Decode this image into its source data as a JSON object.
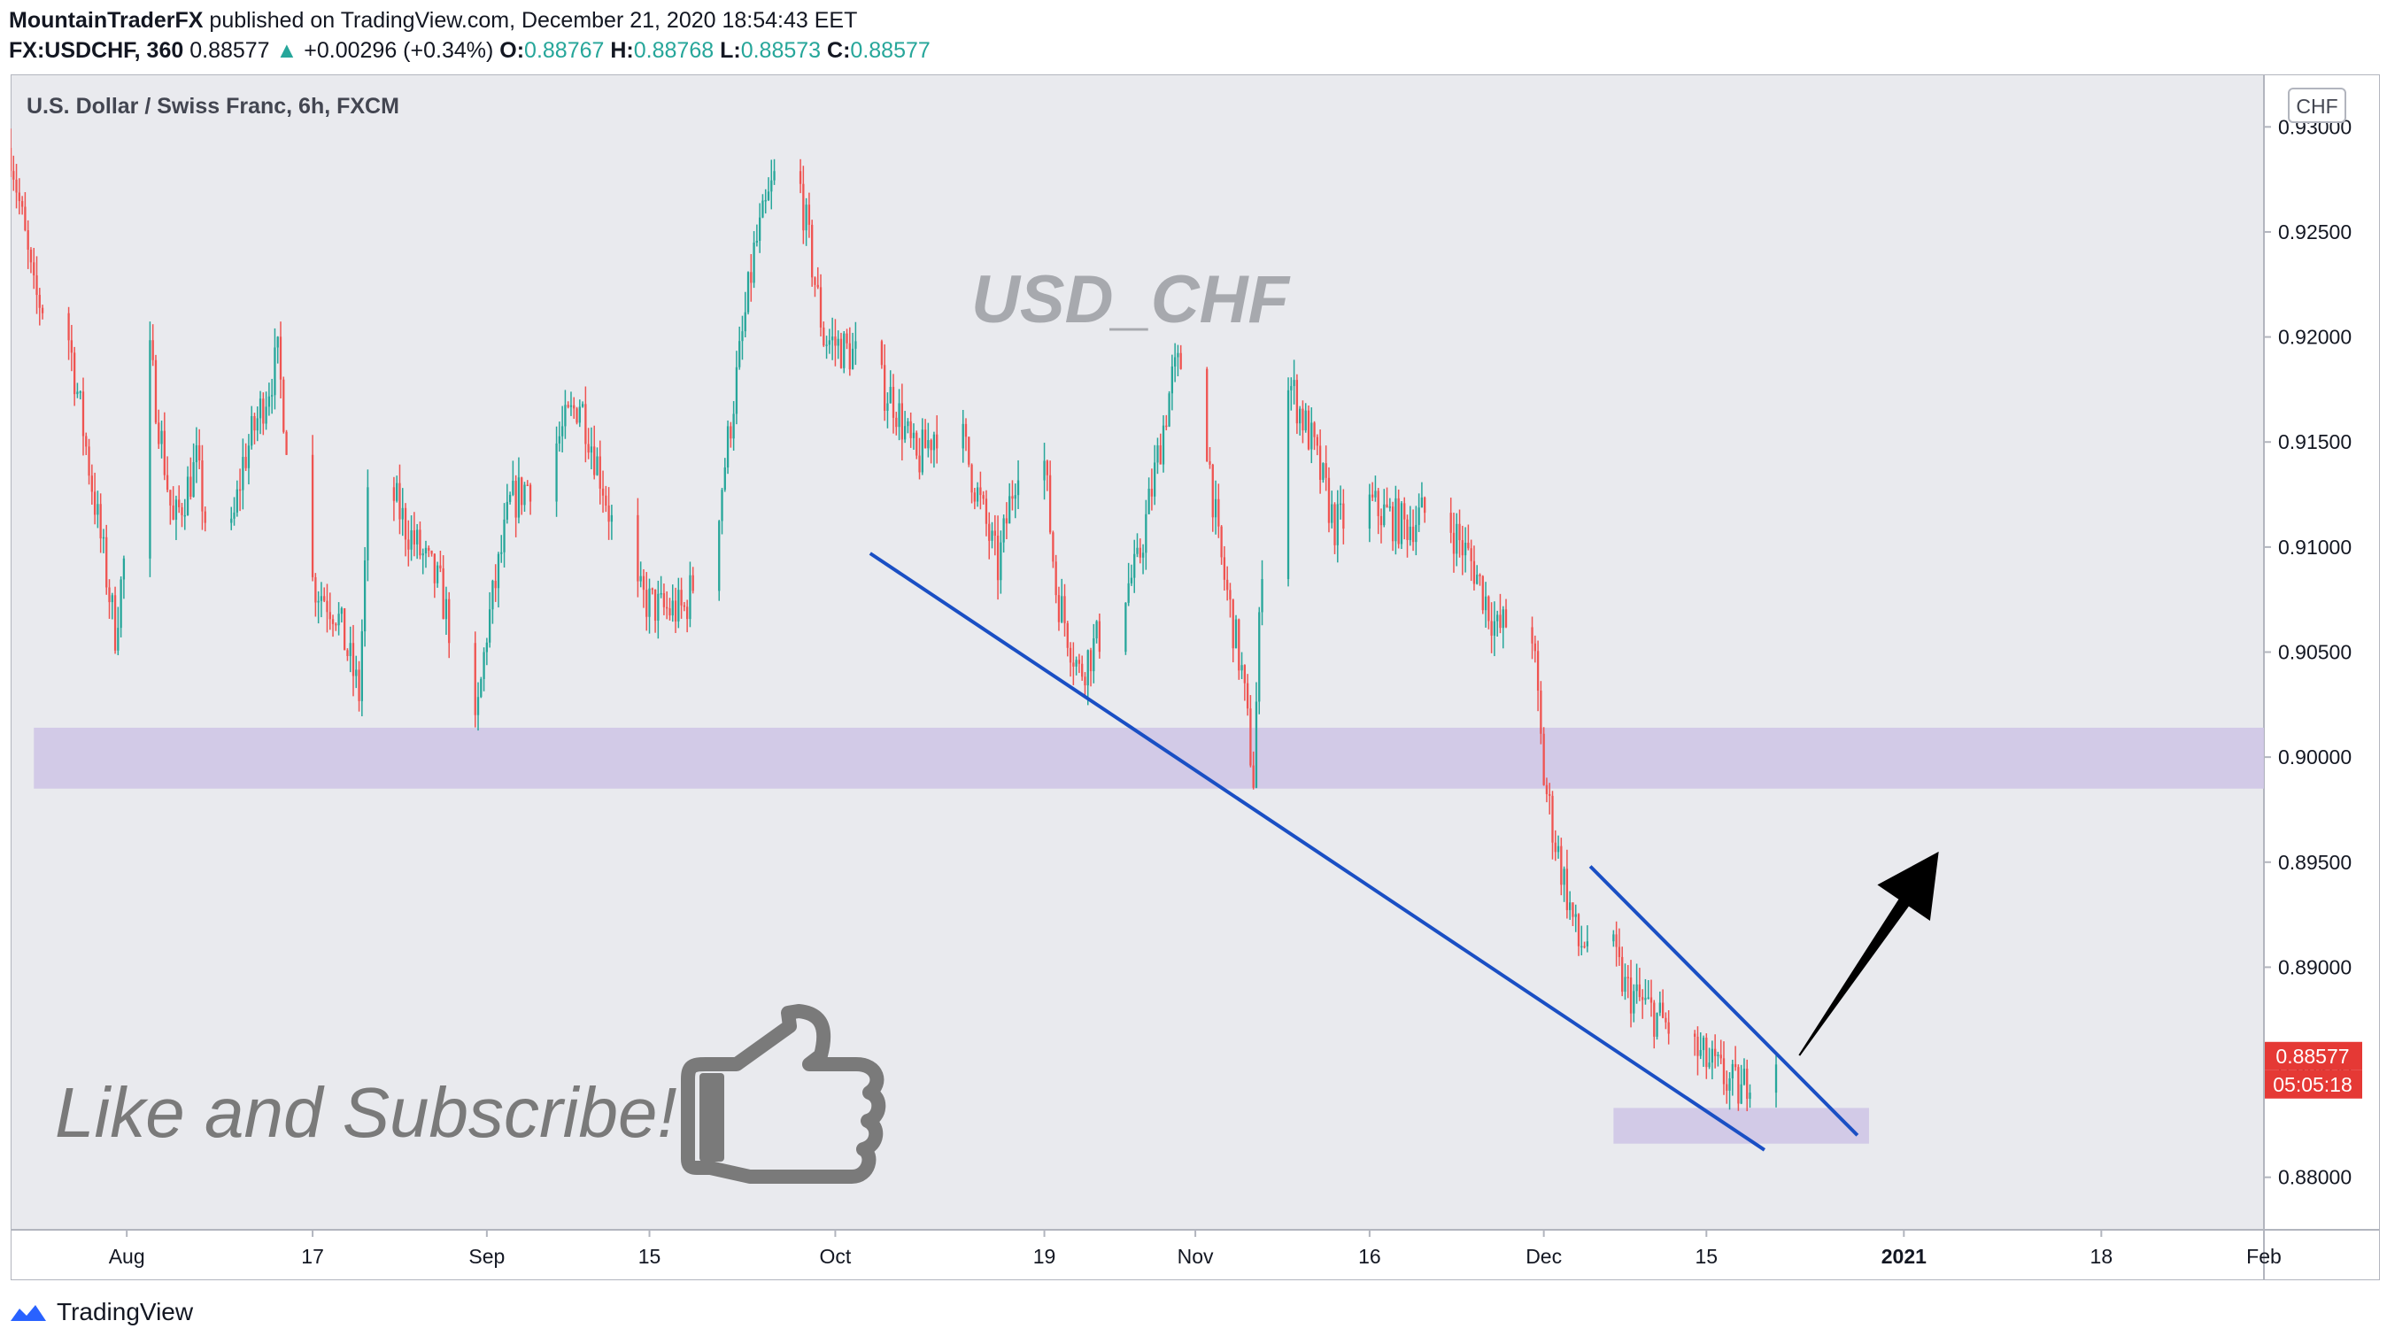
{
  "header": {
    "author": "MountainTraderFX",
    "published": "published on TradingView.com, December 21, 2020 18:54:43 EET",
    "symbol": "FX:USDCHF, 360",
    "last": "0.88577",
    "change_arrow": "▲",
    "change": "+0.00296 (+0.34%)",
    "o_label": "O:",
    "o": "0.88767",
    "h_label": "H:",
    "h": "0.88768",
    "l_label": "L:",
    "l": "0.88573",
    "c_label": "C:",
    "c": "0.88577"
  },
  "chart_data": {
    "type": "candlestick",
    "title": "U.S. Dollar / Swiss Franc, 6h, FXCM",
    "watermark": "USD_CHF",
    "currency_badge": "CHF",
    "caption": "Like and Subscribe!",
    "ylim": [
      0.8775,
      0.9325
    ],
    "yticks": [
      "0.88000",
      "0.88500",
      "0.89000",
      "0.89500",
      "0.90000",
      "0.90500",
      "0.91000",
      "0.91500",
      "0.92000",
      "0.92500",
      "0.93000"
    ],
    "xlim": [
      "2020-07-22",
      "2021-02-01"
    ],
    "xticks": [
      {
        "date": "2020-08-01",
        "label": "Aug"
      },
      {
        "date": "2020-08-17",
        "label": "17"
      },
      {
        "date": "2020-09-01",
        "label": "Sep"
      },
      {
        "date": "2020-09-15",
        "label": "15"
      },
      {
        "date": "2020-10-01",
        "label": "Oct"
      },
      {
        "date": "2020-10-19",
        "label": "19"
      },
      {
        "date": "2020-11-01",
        "label": "Nov"
      },
      {
        "date": "2020-11-16",
        "label": "16"
      },
      {
        "date": "2020-12-01",
        "label": "Dec"
      },
      {
        "date": "2020-12-15",
        "label": "15"
      },
      {
        "date": "2021-01-01",
        "label": "2021"
      },
      {
        "date": "2021-01-18",
        "label": "18"
      },
      {
        "date": "2021-02-01",
        "label": "Feb"
      }
    ],
    "price_path": [
      [
        "2020-07-22",
        0.929
      ],
      [
        "2020-07-24",
        0.922
      ],
      [
        "2020-07-27",
        0.92
      ],
      [
        "2020-07-29",
        0.913
      ],
      [
        "2020-07-31",
        0.906
      ],
      [
        "2020-08-03",
        0.919
      ],
      [
        "2020-08-05",
        0.911
      ],
      [
        "2020-08-07",
        0.914
      ],
      [
        "2020-08-09",
        0.907
      ],
      [
        "2020-08-11",
        0.914
      ],
      [
        "2020-08-14",
        0.919
      ],
      [
        "2020-08-16",
        0.909
      ],
      [
        "2020-08-19",
        0.907
      ],
      [
        "2020-08-21",
        0.903
      ],
      [
        "2020-08-22",
        0.915
      ],
      [
        "2020-08-25",
        0.911
      ],
      [
        "2020-08-28",
        0.908
      ],
      [
        "2020-08-31",
        0.901
      ],
      [
        "2020-09-01",
        0.906
      ],
      [
        "2020-09-03",
        0.912
      ],
      [
        "2020-09-06",
        0.914
      ],
      [
        "2020-09-09",
        0.917
      ],
      [
        "2020-09-11",
        0.913
      ],
      [
        "2020-09-13",
        0.908
      ],
      [
        "2020-09-16",
        0.907
      ],
      [
        "2020-09-18",
        0.907
      ],
      [
        "2020-09-21",
        0.912
      ],
      [
        "2020-09-24",
        0.924
      ],
      [
        "2020-09-26",
        0.928
      ],
      [
        "2020-09-28",
        0.927
      ],
      [
        "2020-09-30",
        0.92
      ],
      [
        "2020-10-03",
        0.919
      ],
      [
        "2020-10-06",
        0.917
      ],
      [
        "2020-10-08",
        0.914
      ],
      [
        "2020-10-11",
        0.917
      ],
      [
        "2020-10-14",
        0.911
      ],
      [
        "2020-10-15",
        0.909
      ],
      [
        "2020-10-17",
        0.915
      ],
      [
        "2020-10-19",
        0.914
      ],
      [
        "2020-10-20",
        0.908
      ],
      [
        "2020-10-22",
        0.904
      ],
      [
        "2020-10-24",
        0.906
      ],
      [
        "2020-10-27",
        0.909
      ],
      [
        "2020-10-30",
        0.918
      ],
      [
        "2020-11-01",
        0.92
      ],
      [
        "2020-11-03",
        0.91
      ],
      [
        "2020-11-05",
        0.904
      ],
      [
        "2020-11-06",
        0.899
      ],
      [
        "2020-11-07",
        0.913
      ],
      [
        "2020-11-09",
        0.918
      ],
      [
        "2020-11-11",
        0.915
      ],
      [
        "2020-11-13",
        0.911
      ],
      [
        "2020-11-16",
        0.912
      ],
      [
        "2020-11-19",
        0.911
      ],
      [
        "2020-11-22",
        0.912
      ],
      [
        "2020-11-25",
        0.909
      ],
      [
        "2020-11-27",
        0.906
      ],
      [
        "2020-11-29",
        0.907
      ],
      [
        "2020-11-30",
        0.906
      ],
      [
        "2020-12-01",
        0.899
      ],
      [
        "2020-12-02",
        0.896
      ],
      [
        "2020-12-04",
        0.891
      ],
      [
        "2020-12-06",
        0.892
      ],
      [
        "2020-12-08",
        0.889
      ],
      [
        "2020-12-10",
        0.888
      ],
      [
        "2020-12-12",
        0.887
      ],
      [
        "2020-12-14",
        0.886
      ],
      [
        "2020-12-16",
        0.885
      ],
      [
        "2020-12-18",
        0.884
      ],
      [
        "2020-12-19",
        0.8855
      ],
      [
        "2020-12-21",
        0.8858
      ]
    ],
    "last_price": "0.88577",
    "countdown": "05:05:18",
    "support_zones": [
      {
        "from": "2020-07-24",
        "to": "2021-02-01",
        "low": 0.8985,
        "high": 0.9014
      },
      {
        "from": "2020-12-07",
        "to": "2020-12-29",
        "low": 0.8816,
        "high": 0.8833
      }
    ],
    "trendlines": [
      {
        "from": [
          "2020-10-04",
          0.9097
        ],
        "to": [
          "2020-12-20",
          0.8813
        ]
      },
      {
        "from": [
          "2020-12-05",
          0.8948
        ],
        "to": [
          "2020-12-28",
          0.882
        ]
      }
    ],
    "arrow": {
      "from": [
        "2020-12-23",
        0.8858
      ],
      "to": [
        "2021-01-04",
        0.8955
      ]
    },
    "colors": {
      "up": "#26a69a",
      "down": "#ef5350",
      "zone": "#cfc6e6",
      "trendline": "#1a4fc4",
      "price_label": "#e53935",
      "plot_bg": "#e9eaee"
    }
  },
  "footer": {
    "brand": "TradingView"
  }
}
